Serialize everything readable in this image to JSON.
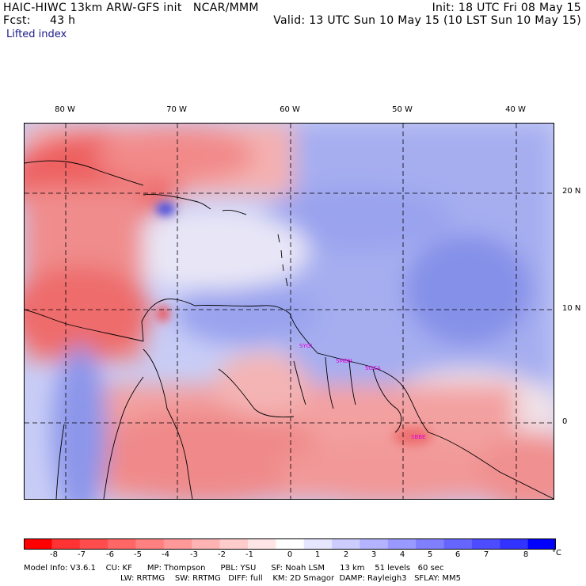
{
  "header": {
    "model_title": "HAIC-HIWC 13km ARW-GFS init   NCAR/MMM",
    "init": "Init: 18 UTC Fri 08 May 15",
    "fcst_label": "Fcst:",
    "fcst_value": "43 h",
    "valid": "Valid: 13 UTC Sun 10 May 15 (10 LST Sun 10 May 15)",
    "field": "Lifted index"
  },
  "map": {
    "lon_labels": [
      "80 W",
      "70 W",
      "60 W",
      "50 W",
      "40 W"
    ],
    "lat_labels": [
      "20 N",
      "10 N",
      "0"
    ],
    "stations": [
      "SYGI",
      "SMBN",
      "SOCA",
      "SBBE"
    ]
  },
  "colorbar": {
    "ticks": [
      "-8",
      "-7",
      "-6",
      "-5",
      "-4",
      "-3",
      "-2",
      "-1",
      "0",
      "1",
      "2",
      "3",
      "4",
      "5",
      "6",
      "7",
      "8"
    ],
    "unit": "°C",
    "colors": [
      "#ff0000",
      "#ff3333",
      "#ff4d4d",
      "#ff6666",
      "#ff8080",
      "#ff9999",
      "#ffb3b3",
      "#ffcccc",
      "#ffe6e6",
      "#ffffff",
      "#e6e6ff",
      "#ccccff",
      "#b3b3ff",
      "#9999ff",
      "#8080ff",
      "#6666ff",
      "#4d4dff",
      "#3333ff",
      "#0000ff"
    ]
  },
  "footer": {
    "line1": "Model Info: V3.6.1    CU: KF      MP: Thompson      PBL: YSU      SF: Noah LSM      13 km    51 levels   60 sec",
    "line2": "LW: RRTMG    SW: RRTMG   DIFF: full    KM: 2D Smagor  DAMP: Rayleigh3   SFLAY: MM5"
  }
}
